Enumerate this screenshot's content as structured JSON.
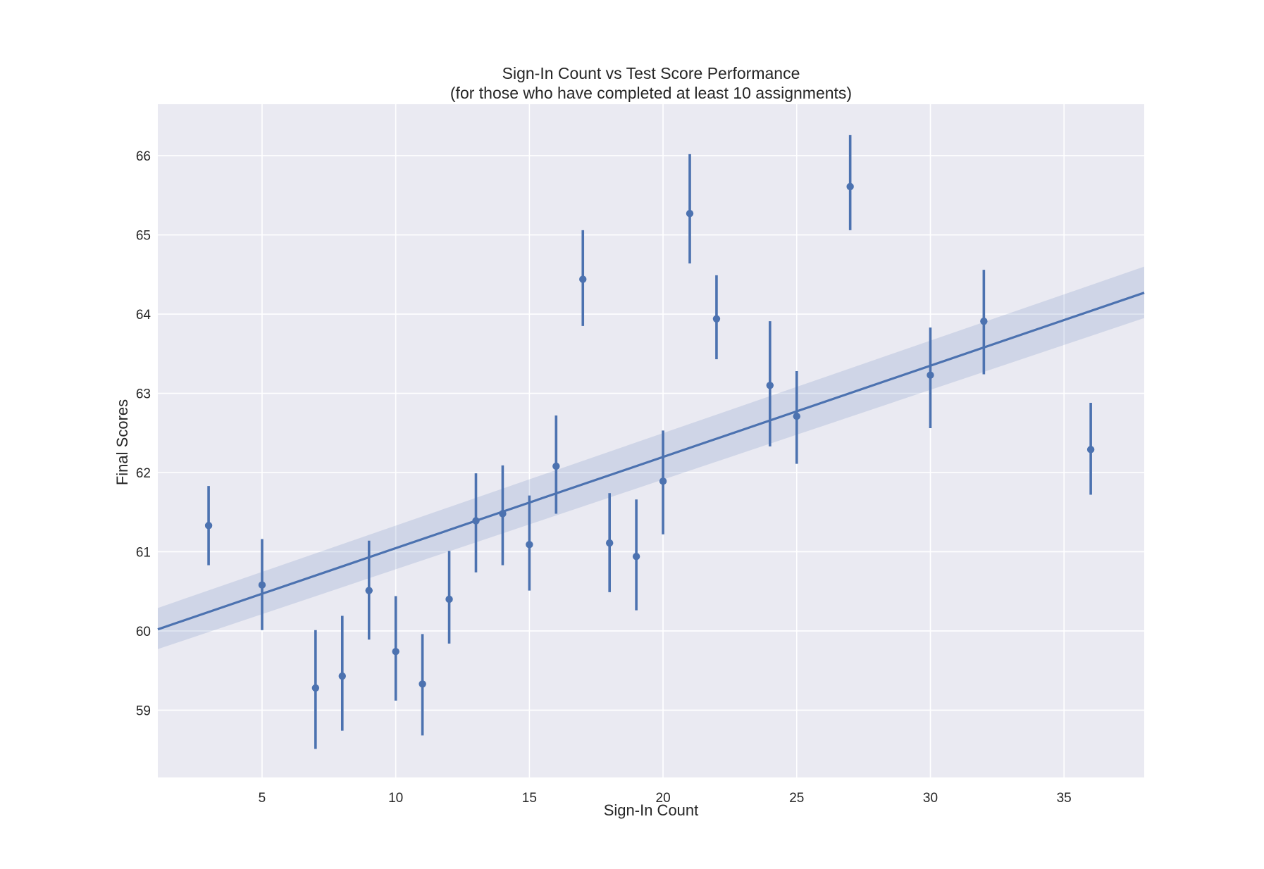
{
  "chart_data": {
    "type": "scatter",
    "title": "Sign-In Count vs Test Score Performance",
    "subtitle": "(for those who have completed at least 10 assignments)",
    "xlabel": "Sign-In Count",
    "ylabel": "Final Scores",
    "xlim": [
      1.1,
      38
    ],
    "ylim": [
      58.15,
      66.65
    ],
    "xticks": [
      5,
      10,
      15,
      20,
      25,
      30,
      35
    ],
    "yticks": [
      59,
      60,
      61,
      62,
      63,
      64,
      65,
      66
    ],
    "grid": true,
    "colors": {
      "series": "#4c72b0",
      "band": "#4c72b0",
      "plot_bg": "#eaeaf2",
      "grid": "#ffffff"
    },
    "series": [
      {
        "points": [
          {
            "x": 3,
            "y": 61.33,
            "low": 60.83,
            "high": 61.83
          },
          {
            "x": 5,
            "y": 60.58,
            "low": 60.01,
            "high": 61.16
          },
          {
            "x": 7,
            "y": 59.28,
            "low": 58.51,
            "high": 60.01
          },
          {
            "x": 8,
            "y": 59.43,
            "low": 58.74,
            "high": 60.19
          },
          {
            "x": 9,
            "y": 60.51,
            "low": 59.89,
            "high": 61.14
          },
          {
            "x": 10,
            "y": 59.74,
            "low": 59.12,
            "high": 60.44
          },
          {
            "x": 11,
            "y": 59.33,
            "low": 58.68,
            "high": 59.96
          },
          {
            "x": 12,
            "y": 60.4,
            "low": 59.84,
            "high": 61.01
          },
          {
            "x": 13,
            "y": 61.39,
            "low": 60.74,
            "high": 61.99
          },
          {
            "x": 14,
            "y": 61.48,
            "low": 60.83,
            "high": 62.09
          },
          {
            "x": 15,
            "y": 61.09,
            "low": 60.51,
            "high": 61.71
          },
          {
            "x": 16,
            "y": 62.08,
            "low": 61.48,
            "high": 62.72
          },
          {
            "x": 17,
            "y": 64.44,
            "low": 63.85,
            "high": 65.06
          },
          {
            "x": 18,
            "y": 61.11,
            "low": 60.49,
            "high": 61.74
          },
          {
            "x": 19,
            "y": 60.94,
            "low": 60.26,
            "high": 61.66
          },
          {
            "x": 20,
            "y": 61.89,
            "low": 61.22,
            "high": 62.53
          },
          {
            "x": 21,
            "y": 65.27,
            "low": 64.64,
            "high": 66.02
          },
          {
            "x": 22,
            "y": 63.94,
            "low": 63.43,
            "high": 64.49
          },
          {
            "x": 24,
            "y": 63.1,
            "low": 62.33,
            "high": 63.91
          },
          {
            "x": 25,
            "y": 62.71,
            "low": 62.11,
            "high": 63.28
          },
          {
            "x": 27,
            "y": 65.61,
            "low": 65.06,
            "high": 66.26
          },
          {
            "x": 30,
            "y": 63.23,
            "low": 62.56,
            "high": 63.83
          },
          {
            "x": 32,
            "y": 63.91,
            "low": 63.24,
            "high": 64.56
          },
          {
            "x": 36,
            "y": 62.29,
            "low": 61.72,
            "high": 62.88
          }
        ]
      }
    ],
    "regression": {
      "x": [
        1.1,
        38
      ],
      "y": [
        60.02,
        64.27
      ],
      "ci_low": [
        59.77,
        63.95
      ],
      "ci_high": [
        60.29,
        64.6
      ]
    }
  }
}
